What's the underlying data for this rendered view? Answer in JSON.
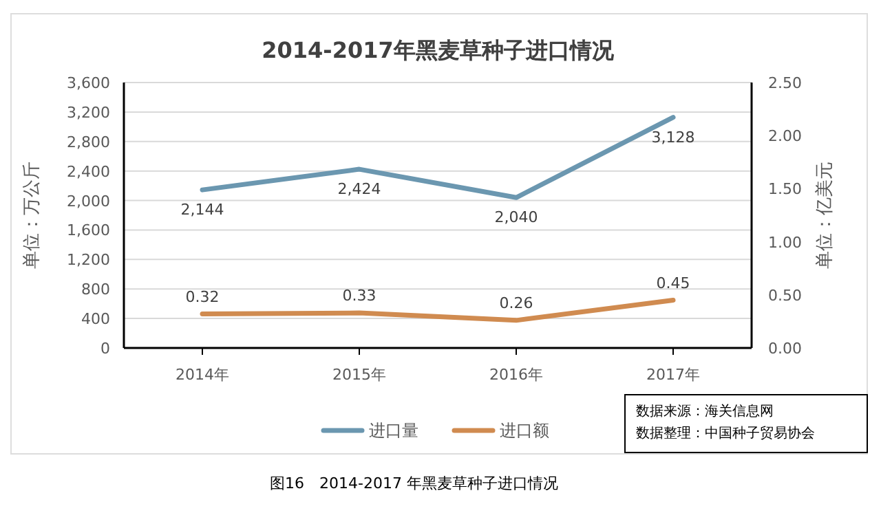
{
  "chart_data": {
    "type": "line",
    "title": "2014-2017年黑麦草种子进口情况",
    "categories": [
      "2014年",
      "2015年",
      "2016年",
      "2017年"
    ],
    "ylabel": "单位：万公斤",
    "y2label": "单位：亿美元",
    "ylim": [
      0,
      3600
    ],
    "yticks": [
      {
        "value": 0,
        "label": "0"
      },
      {
        "value": 400,
        "label": "400"
      },
      {
        "value": 800,
        "label": "800"
      },
      {
        "value": 1200,
        "label": "1,200"
      },
      {
        "value": 1600,
        "label": "1,600"
      },
      {
        "value": 2000,
        "label": "2,000"
      },
      {
        "value": 2400,
        "label": "2,400"
      },
      {
        "value": 2800,
        "label": "2,800"
      },
      {
        "value": 3200,
        "label": "3,200"
      },
      {
        "value": 3600,
        "label": "3,600"
      }
    ],
    "y2lim": [
      0,
      2.5
    ],
    "y2ticks": [
      {
        "value": 0,
        "label": "0.00"
      },
      {
        "value": 0.5,
        "label": "0.50"
      },
      {
        "value": 1,
        "label": "1.00"
      },
      {
        "value": 1.5,
        "label": "1.50"
      },
      {
        "value": 2,
        "label": "2.00"
      },
      {
        "value": 2.5,
        "label": "2.50"
      }
    ],
    "series": [
      {
        "name": "进口量",
        "color": "#6b97b0",
        "values": [
          2144,
          2424,
          2040,
          3128
        ],
        "value_labels": [
          "2,144",
          "2,424",
          "2,040",
          "3,128"
        ]
      },
      {
        "name": "进口额",
        "color": "#d08b50",
        "axis": "y2",
        "values": [
          0.32,
          0.33,
          0.26,
          0.45
        ],
        "value_labels": [
          "0.32",
          "0.33",
          "0.26",
          "0.45"
        ]
      }
    ],
    "grid": "y",
    "legend": "bottom",
    "marker": "none",
    "line_style": "solid",
    "annotations": [
      "数据来源：海关信息网",
      "数据整理：中国种子贸易协会",
      "图16　2014-2017 年黑麦草种子进口情况"
    ]
  }
}
